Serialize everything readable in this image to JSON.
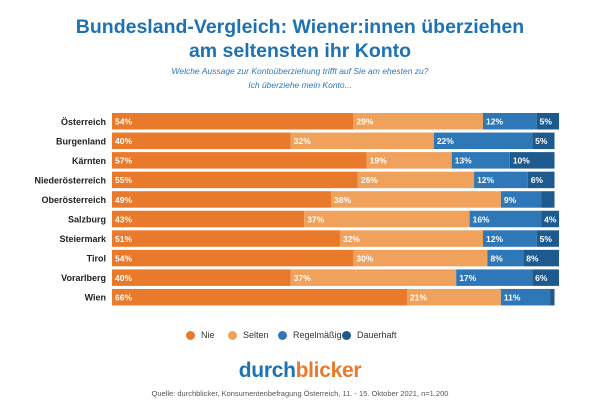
{
  "header": {
    "title_line1": "Bundesland-Vergleich: Wiener:innen überziehen",
    "title_line2": "am seltensten ihr Konto",
    "question": "Welche Aussage zur Kontoüberziehung trifft auf Sie am ehesten zu?",
    "statement": "Ich überziehe mein Konto..."
  },
  "colors": {
    "title": "#1f72b0",
    "nie": "#ea7a2b",
    "selten": "#f0a25c",
    "regelmaessig": "#2e78b8",
    "dauerhaft": "#1f5a8f",
    "brand_dark": "#1f72b0",
    "brand_accent": "#ea7a2b"
  },
  "chart_data": {
    "type": "bar",
    "orientation": "horizontal",
    "stacked": true,
    "normalized": true,
    "categories": [
      "Österreich",
      "Burgenland",
      "Kärnten",
      "Niederösterreich",
      "Oberösterreich",
      "Salzburg",
      "Steiermark",
      "Tirol",
      "Vorarlberg",
      "Wien"
    ],
    "series": [
      {
        "name": "Nie",
        "values": [
          54,
          40,
          57,
          55,
          49,
          43,
          51,
          54,
          40,
          66
        ]
      },
      {
        "name": "Selten",
        "values": [
          29,
          32,
          19,
          26,
          38,
          37,
          32,
          30,
          37,
          21
        ]
      },
      {
        "name": "Regelmäßig",
        "values": [
          12,
          22,
          13,
          12,
          9,
          16,
          12,
          8,
          17,
          11
        ]
      },
      {
        "name": "Dauerhaft",
        "values": [
          5,
          5,
          10,
          6,
          3,
          4,
          5,
          8,
          6,
          1
        ]
      }
    ],
    "labels": [
      [
        "54%",
        "29%",
        "12%",
        "5%"
      ],
      [
        "40%",
        "32%",
        "22%",
        "5%"
      ],
      [
        "57%",
        "19%",
        "13%",
        "10%"
      ],
      [
        "55%",
        "26%",
        "12%",
        "6%"
      ],
      [
        "49%",
        "38%",
        "9%",
        ""
      ],
      [
        "43%",
        "37%",
        "16%",
        "4%"
      ],
      [
        "51%",
        "32%",
        "12%",
        "5%"
      ],
      [
        "54%",
        "30%",
        "8%",
        "8%"
      ],
      [
        "40%",
        "37%",
        "17%",
        "6%"
      ],
      [
        "66%",
        "21%",
        "11%",
        ""
      ]
    ],
    "legend": [
      "Nie",
      "Selten",
      "Regelmäßig",
      "Dauerhaft"
    ],
    "legend_position": "bottom",
    "xlim": [
      0,
      100
    ]
  },
  "footer": {
    "brand_part1": "durch",
    "brand_part2": "blicker",
    "source": "Quelle: durchblicker, Konsumentenbefragung Österreich, 11. - 15. Oktober 2021, n=1.200"
  }
}
